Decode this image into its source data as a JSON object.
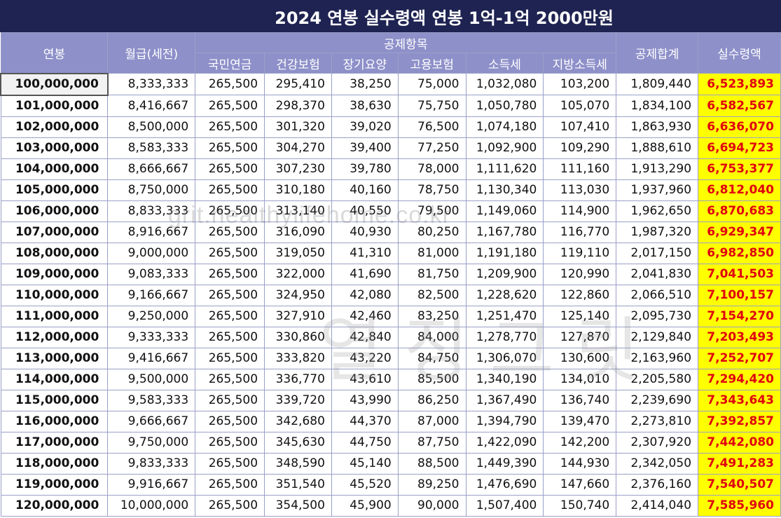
{
  "title": "2024 연봉 실수령액 연봉 1억-1억 2000만원",
  "headers": {
    "annual": "연봉",
    "monthly": "월급(세전)",
    "deduction_group": "공제항목",
    "pension": "국민연금",
    "health": "건강보험",
    "ltc": "장기요양",
    "employment": "고용보험",
    "income_tax": "소득세",
    "local_tax": "지방소득세",
    "total": "공제합계",
    "net": "실수령액"
  },
  "rows": [
    [
      "100,000,000",
      "8,333,333",
      "265,500",
      "295,410",
      "38,250",
      "75,000",
      "1,032,080",
      "103,200",
      "1,809,440",
      "6,523,893"
    ],
    [
      "101,000,000",
      "8,416,667",
      "265,500",
      "298,370",
      "38,630",
      "75,750",
      "1,050,780",
      "105,070",
      "1,834,100",
      "6,582,567"
    ],
    [
      "102,000,000",
      "8,500,000",
      "265,500",
      "301,320",
      "39,020",
      "76,500",
      "1,074,180",
      "107,410",
      "1,863,930",
      "6,636,070"
    ],
    [
      "103,000,000",
      "8,583,333",
      "265,500",
      "304,270",
      "39,400",
      "77,250",
      "1,092,900",
      "109,290",
      "1,888,610",
      "6,694,723"
    ],
    [
      "104,000,000",
      "8,666,667",
      "265,500",
      "307,230",
      "39,780",
      "78,000",
      "1,111,620",
      "111,160",
      "1,913,290",
      "6,753,377"
    ],
    [
      "105,000,000",
      "8,750,000",
      "265,500",
      "310,180",
      "40,160",
      "78,750",
      "1,130,340",
      "113,030",
      "1,937,960",
      "6,812,040"
    ],
    [
      "106,000,000",
      "8,833,333",
      "265,500",
      "313,140",
      "40,550",
      "79,500",
      "1,149,060",
      "114,900",
      "1,962,650",
      "6,870,683"
    ],
    [
      "107,000,000",
      "8,916,667",
      "265,500",
      "316,090",
      "40,930",
      "80,250",
      "1,167,780",
      "116,770",
      "1,987,320",
      "6,929,347"
    ],
    [
      "108,000,000",
      "9,000,000",
      "265,500",
      "319,050",
      "41,310",
      "81,000",
      "1,191,180",
      "119,110",
      "2,017,150",
      "6,982,850"
    ],
    [
      "109,000,000",
      "9,083,333",
      "265,500",
      "322,000",
      "41,690",
      "81,750",
      "1,209,900",
      "120,990",
      "2,041,830",
      "7,041,503"
    ],
    [
      "110,000,000",
      "9,166,667",
      "265,500",
      "324,950",
      "42,080",
      "82,500",
      "1,228,620",
      "122,860",
      "2,066,510",
      "7,100,157"
    ],
    [
      "111,000,000",
      "9,250,000",
      "265,500",
      "327,910",
      "42,460",
      "83,250",
      "1,251,470",
      "125,140",
      "2,095,730",
      "7,154,270"
    ],
    [
      "112,000,000",
      "9,333,333",
      "265,500",
      "330,860",
      "42,840",
      "84,000",
      "1,278,770",
      "127,870",
      "2,129,840",
      "7,203,493"
    ],
    [
      "113,000,000",
      "9,416,667",
      "265,500",
      "333,820",
      "43,220",
      "84,750",
      "1,306,070",
      "130,600",
      "2,163,960",
      "7,252,707"
    ],
    [
      "114,000,000",
      "9,500,000",
      "265,500",
      "336,770",
      "43,610",
      "85,500",
      "1,340,190",
      "134,010",
      "2,205,580",
      "7,294,420"
    ],
    [
      "115,000,000",
      "9,583,333",
      "265,500",
      "339,720",
      "43,990",
      "86,250",
      "1,367,490",
      "136,740",
      "2,239,690",
      "7,343,643"
    ],
    [
      "116,000,000",
      "9,666,667",
      "265,500",
      "342,680",
      "44,370",
      "87,000",
      "1,394,790",
      "139,470",
      "2,273,810",
      "7,392,857"
    ],
    [
      "117,000,000",
      "9,750,000",
      "265,500",
      "345,630",
      "44,750",
      "87,750",
      "1,422,090",
      "142,200",
      "2,307,920",
      "7,442,080"
    ],
    [
      "118,000,000",
      "9,833,333",
      "265,500",
      "348,590",
      "45,140",
      "88,500",
      "1,449,390",
      "144,930",
      "2,342,050",
      "7,491,283"
    ],
    [
      "119,000,000",
      "9,916,667",
      "265,500",
      "351,540",
      "45,520",
      "89,250",
      "1,476,690",
      "147,660",
      "2,376,160",
      "7,540,507"
    ],
    [
      "120,000,000",
      "10,000,000",
      "265,500",
      "354,500",
      "45,900",
      "90,000",
      "1,507,400",
      "150,740",
      "2,414,040",
      "7,585,960"
    ]
  ],
  "watermark_url": "grit.healthylifehome.co.kr",
  "watermark_text": "열정그릿",
  "colors": {
    "header_dark": "#1f2352",
    "header": "#8e90c9",
    "net_bg": "#ffff00",
    "net_text": "#e0000f"
  }
}
